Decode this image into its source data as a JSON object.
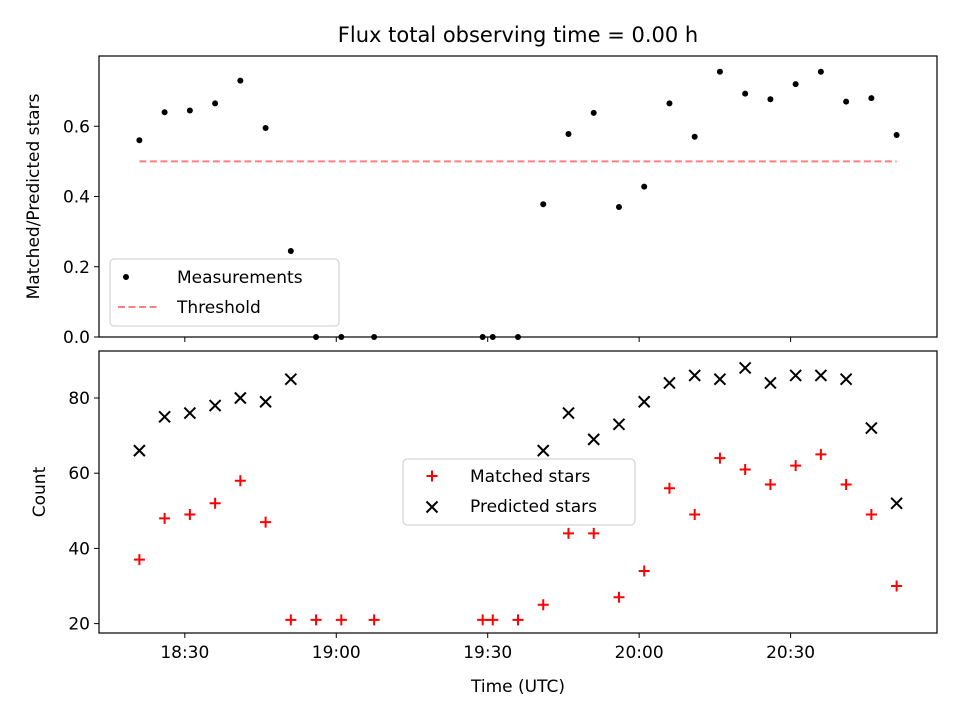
{
  "chart_data": {
    "title": "Flux total observing time = 0.00 h",
    "xlabel": "Time (UTC)",
    "x_ticks": [
      "18:30",
      "19:00",
      "19:30",
      "20:00",
      "20:30"
    ],
    "x_tick_minutes": [
      1110,
      1140,
      1170,
      1200,
      1230
    ],
    "xlim_minutes": [
      1093,
      1259
    ],
    "panels": [
      {
        "type": "scatter",
        "ylabel": "Matched/Predicted stars",
        "ylim": [
          0,
          0.8
        ],
        "y_ticks": [
          0.0,
          0.2,
          0.4,
          0.6
        ],
        "y_tick_labels": [
          "0.0",
          "0.2",
          "0.4",
          "0.6"
        ],
        "legend": {
          "position": "lower-left",
          "entries": [
            "Measurements",
            "Threshold"
          ]
        },
        "series": [
          {
            "name": "Measurements",
            "marker": "dot",
            "color": "#000000",
            "points": [
              {
                "x": 1101,
                "y": 0.56
              },
              {
                "x": 1106,
                "y": 0.64
              },
              {
                "x": 1111,
                "y": 0.645
              },
              {
                "x": 1116,
                "y": 0.665
              },
              {
                "x": 1121,
                "y": 0.73
              },
              {
                "x": 1126,
                "y": 0.595
              },
              {
                "x": 1131,
                "y": 0.245
              },
              {
                "x": 1136,
                "y": 0.0
              },
              {
                "x": 1141,
                "y": 0.0
              },
              {
                "x": 1147.5,
                "y": 0.0
              },
              {
                "x": 1169,
                "y": 0.0
              },
              {
                "x": 1171,
                "y": 0.0
              },
              {
                "x": 1176,
                "y": 0.0
              },
              {
                "x": 1181,
                "y": 0.378
              },
              {
                "x": 1186,
                "y": 0.578
              },
              {
                "x": 1191,
                "y": 0.638
              },
              {
                "x": 1196,
                "y": 0.37
              },
              {
                "x": 1201,
                "y": 0.428
              },
              {
                "x": 1206,
                "y": 0.665
              },
              {
                "x": 1211,
                "y": 0.57
              },
              {
                "x": 1216,
                "y": 0.755
              },
              {
                "x": 1221,
                "y": 0.693
              },
              {
                "x": 1226,
                "y": 0.677
              },
              {
                "x": 1231,
                "y": 0.72
              },
              {
                "x": 1236,
                "y": 0.755
              },
              {
                "x": 1241,
                "y": 0.67
              },
              {
                "x": 1246,
                "y": 0.68
              },
              {
                "x": 1251,
                "y": 0.575
              }
            ]
          },
          {
            "name": "Threshold",
            "type": "line",
            "style": "dashed",
            "color": "#ff7f7f",
            "x": [
              1101,
              1251
            ],
            "y": [
              0.5,
              0.5
            ]
          }
        ]
      },
      {
        "type": "scatter",
        "ylabel": "Count",
        "ylim": [
          17.5,
          92.5
        ],
        "y_ticks": [
          20,
          40,
          60,
          80
        ],
        "y_tick_labels": [
          "20",
          "40",
          "60",
          "80"
        ],
        "legend": {
          "position": "center",
          "entries": [
            "Matched stars",
            "Predicted stars"
          ]
        },
        "series": [
          {
            "name": "Matched stars",
            "marker": "plus",
            "color": "#ff0000",
            "points": [
              {
                "x": 1101,
                "y": 37
              },
              {
                "x": 1106,
                "y": 48
              },
              {
                "x": 1111,
                "y": 49
              },
              {
                "x": 1116,
                "y": 52
              },
              {
                "x": 1121,
                "y": 58
              },
              {
                "x": 1126,
                "y": 47
              },
              {
                "x": 1131,
                "y": 21
              },
              {
                "x": 1136,
                "y": 21
              },
              {
                "x": 1141,
                "y": 21
              },
              {
                "x": 1147.5,
                "y": 21
              },
              {
                "x": 1169,
                "y": 21
              },
              {
                "x": 1171,
                "y": 21
              },
              {
                "x": 1176,
                "y": 21
              },
              {
                "x": 1181,
                "y": 25
              },
              {
                "x": 1186,
                "y": 44
              },
              {
                "x": 1191,
                "y": 44
              },
              {
                "x": 1196,
                "y": 27
              },
              {
                "x": 1201,
                "y": 34
              },
              {
                "x": 1206,
                "y": 56
              },
              {
                "x": 1211,
                "y": 49
              },
              {
                "x": 1216,
                "y": 64
              },
              {
                "x": 1221,
                "y": 61
              },
              {
                "x": 1226,
                "y": 57
              },
              {
                "x": 1231,
                "y": 62
              },
              {
                "x": 1236,
                "y": 65
              },
              {
                "x": 1241,
                "y": 57
              },
              {
                "x": 1246,
                "y": 49
              },
              {
                "x": 1251,
                "y": 30
              }
            ]
          },
          {
            "name": "Predicted stars",
            "marker": "x",
            "color": "#000000",
            "points": [
              {
                "x": 1101,
                "y": 66
              },
              {
                "x": 1106,
                "y": 75
              },
              {
                "x": 1111,
                "y": 76
              },
              {
                "x": 1116,
                "y": 78
              },
              {
                "x": 1121,
                "y": 80
              },
              {
                "x": 1126,
                "y": 79
              },
              {
                "x": 1131,
                "y": 85
              },
              {
                "x": 1181,
                "y": 66
              },
              {
                "x": 1186,
                "y": 76
              },
              {
                "x": 1191,
                "y": 69
              },
              {
                "x": 1196,
                "y": 73
              },
              {
                "x": 1201,
                "y": 79
              },
              {
                "x": 1206,
                "y": 84
              },
              {
                "x": 1211,
                "y": 86
              },
              {
                "x": 1216,
                "y": 85
              },
              {
                "x": 1221,
                "y": 88
              },
              {
                "x": 1226,
                "y": 84
              },
              {
                "x": 1231,
                "y": 86
              },
              {
                "x": 1236,
                "y": 86
              },
              {
                "x": 1241,
                "y": 85
              },
              {
                "x": 1246,
                "y": 72
              },
              {
                "x": 1251,
                "y": 52
              }
            ]
          }
        ]
      }
    ]
  }
}
